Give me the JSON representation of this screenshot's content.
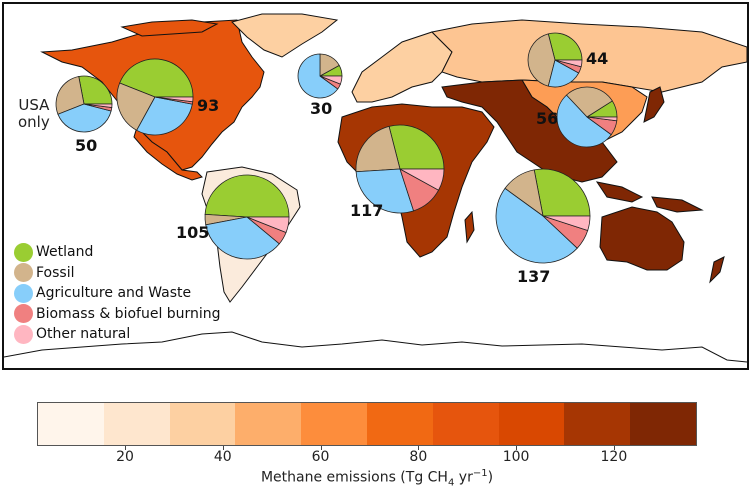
{
  "chart_data": {
    "type": "pie",
    "title": "",
    "description": "World map of methane emissions by region (choropleth) with pie charts showing source breakdown per region",
    "legend": [
      "Wetland",
      "Fossil",
      "Agriculture and Waste",
      "Biomass & biofuel burning",
      "Other natural"
    ],
    "legend_colors": [
      "#9ACD32",
      "#D2B48C",
      "#87CEFA",
      "#F08080",
      "#FFB6C1"
    ],
    "regions": [
      {
        "name": "USA only",
        "total": 50,
        "fractions": [
          0.28,
          0.28,
          0.4,
          0.02,
          0.02
        ]
      },
      {
        "name": "North America",
        "total": 93,
        "fractions": [
          0.44,
          0.23,
          0.3,
          0.01,
          0.02
        ]
      },
      {
        "name": "Europe",
        "total": 30,
        "fractions": [
          0.08,
          0.17,
          0.65,
          0.04,
          0.06
        ]
      },
      {
        "name": "Russia / North Asia",
        "total": 44,
        "fractions": [
          0.29,
          0.42,
          0.21,
          0.04,
          0.04
        ]
      },
      {
        "name": "East Asia",
        "total": 56,
        "fractions": [
          0.09,
          0.28,
          0.53,
          0.08,
          0.02
        ]
      },
      {
        "name": "Africa / Middle East",
        "total": 117,
        "fractions": [
          0.29,
          0.22,
          0.29,
          0.12,
          0.08
        ]
      },
      {
        "name": "South & Southeast Asia / Oceania",
        "total": 137,
        "fractions": [
          0.28,
          0.12,
          0.48,
          0.07,
          0.05
        ]
      },
      {
        "name": "South America",
        "total": 105,
        "fractions": [
          0.49,
          0.04,
          0.36,
          0.05,
          0.06
        ]
      }
    ],
    "colorbar": {
      "label": "Methane emissions (Tg CH4 yr-1)",
      "ticks": [
        20,
        40,
        60,
        80,
        100,
        120
      ],
      "range": [
        2,
        137
      ],
      "colors": [
        "#FFF5EB",
        "#FEE6CE",
        "#FDD0A2",
        "#FDAE6B",
        "#FD8D3C",
        "#F16913",
        "#E6550D",
        "#D94801",
        "#A63603",
        "#7F2704"
      ]
    }
  },
  "map": {
    "region_fill": {
      "north_america": "#E6550D",
      "greenland": "#FDD0A2",
      "europe": "#FDD0A2",
      "russia": "#FDC592",
      "east_asia": "#FD9D55",
      "south_asia": "#7F2704",
      "africa": "#A63603",
      "oceania": "#7F2704",
      "south_america": "#FBEBDC"
    }
  },
  "labels": {
    "usa": "USA\nonly",
    "usa_line1": "USA",
    "usa_line2": "only",
    "v50": "50",
    "v93": "93",
    "v30": "30",
    "v44": "44",
    "v56": "56",
    "v117": "117",
    "v137": "137",
    "v105": "105"
  },
  "legend": [
    {
      "label": "Wetland",
      "color": "#9ACD32"
    },
    {
      "label": "Fossil",
      "color": "#D2B48C"
    },
    {
      "label": "Agriculture and Waste",
      "color": "#87CEFA"
    },
    {
      "label": "Biomass & biofuel burning",
      "color": "#F08080"
    },
    {
      "label": "Other natural",
      "color": "#FFB6C1"
    }
  ],
  "colorbar": {
    "ticks": [
      "20",
      "40",
      "60",
      "80",
      "100",
      "120"
    ],
    "label_prefix": "Methane emissions (Tg CH",
    "label_sub": "4",
    "label_mid": " yr",
    "label_sup": "−1",
    "label_suffix": ")"
  }
}
